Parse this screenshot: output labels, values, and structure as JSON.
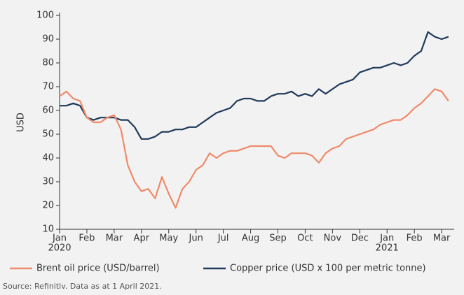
{
  "chart_data": {
    "type": "line",
    "y_label": "USD",
    "source": "Source: Refinitiv. Data as at 1 April 2021.",
    "x": [
      0,
      0.25,
      0.5,
      0.75,
      1,
      1.25,
      1.5,
      1.75,
      2,
      2.25,
      2.5,
      2.75,
      3,
      3.25,
      3.5,
      3.75,
      4,
      4.25,
      4.5,
      4.75,
      5,
      5.25,
      5.5,
      5.75,
      6,
      6.25,
      6.5,
      6.75,
      7,
      7.25,
      7.5,
      7.75,
      8,
      8.25,
      8.5,
      8.75,
      9,
      9.25,
      9.5,
      9.75,
      10,
      10.25,
      10.5,
      10.75,
      11,
      11.25,
      11.5,
      11.75,
      12,
      12.25,
      12.5,
      12.75,
      13,
      13.25,
      13.5,
      13.75,
      14,
      14.25
    ],
    "series": [
      {
        "name": "Brent oil price (USD/barrel)",
        "color": "#f08a6a",
        "values": [
          66,
          68,
          65,
          64,
          57,
          55,
          55,
          57,
          58,
          52,
          37,
          30,
          26,
          27,
          23,
          32,
          25,
          19,
          27,
          30,
          35,
          37,
          42,
          40,
          42,
          43,
          43,
          44,
          45,
          45,
          45,
          45,
          41,
          40,
          42,
          42,
          42,
          41,
          38,
          42,
          44,
          45,
          48,
          49,
          50,
          51,
          52,
          54,
          55,
          56,
          56,
          58,
          61,
          63,
          66,
          69,
          68,
          64
        ]
      },
      {
        "name": "Copper price (USD x 100 per metric tonne)",
        "color": "#1f3a5a",
        "values": [
          62,
          62,
          63,
          62,
          57,
          56,
          57,
          57,
          57,
          56,
          56,
          53,
          48,
          48,
          49,
          51,
          51,
          52,
          52,
          53,
          53,
          55,
          57,
          59,
          60,
          61,
          64,
          65,
          65,
          64,
          64,
          66,
          67,
          67,
          68,
          66,
          67,
          66,
          69,
          67,
          69,
          71,
          72,
          73,
          76,
          77,
          78,
          78,
          79,
          80,
          79,
          80,
          83,
          85,
          93,
          91,
          90,
          91
        ]
      }
    ],
    "xlim": [
      0,
      14.46
    ],
    "xticks": [
      {
        "value": 0,
        "label": "Jan"
      },
      {
        "value": 1,
        "label": "Feb"
      },
      {
        "value": 2,
        "label": "Mar"
      },
      {
        "value": 3,
        "label": "Apr"
      },
      {
        "value": 4,
        "label": "May"
      },
      {
        "value": 5,
        "label": "Jun"
      },
      {
        "value": 6,
        "label": "Jul"
      },
      {
        "value": 7,
        "label": "Aug"
      },
      {
        "value": 8,
        "label": "Sep"
      },
      {
        "value": 9,
        "label": "Oct"
      },
      {
        "value": 10,
        "label": "Nov"
      },
      {
        "value": 11,
        "label": "Dec"
      },
      {
        "value": 12,
        "label": "Jan"
      },
      {
        "value": 13,
        "label": "Feb"
      },
      {
        "value": 14,
        "label": "Mar"
      }
    ],
    "year_labels": [
      {
        "value": 0,
        "label": "2020"
      },
      {
        "value": 12,
        "label": "2021"
      }
    ],
    "ylim": [
      10,
      100
    ],
    "yticks": [
      10,
      20,
      30,
      40,
      50,
      60,
      70,
      80,
      90,
      100
    ]
  }
}
